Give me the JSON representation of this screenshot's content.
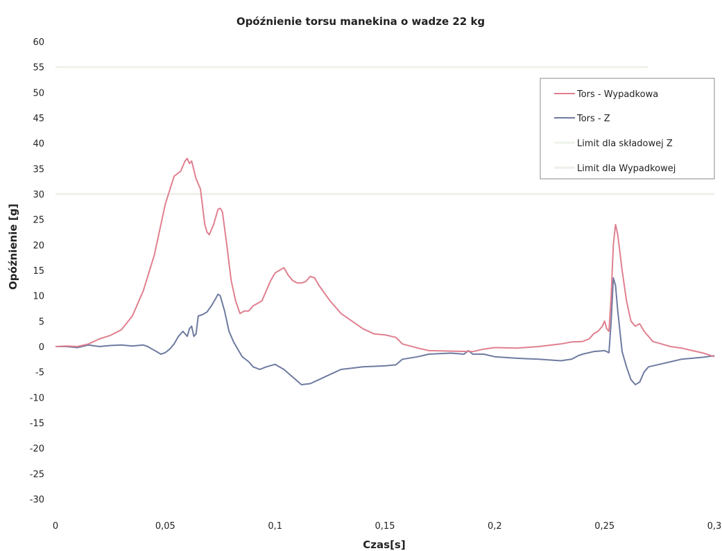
{
  "chart_data": {
    "type": "line",
    "title": "Opóźnienie torsu manekina o wadze 22 kg",
    "xlabel": "Czas[s]",
    "ylabel": "Opóźnienie [g]",
    "xlim": [
      0,
      0.3
    ],
    "ylim": [
      -30,
      60
    ],
    "x_ticks": [
      {
        "v": 0,
        "label": "0"
      },
      {
        "v": 0.05,
        "label": "0,05"
      },
      {
        "v": 0.1,
        "label": "0,1"
      },
      {
        "v": 0.15,
        "label": "0,15"
      },
      {
        "v": 0.2,
        "label": "0,2"
      },
      {
        "v": 0.25,
        "label": "0,25"
      },
      {
        "v": 0.3,
        "label": "0,3"
      }
    ],
    "y_ticks": [
      {
        "v": 60,
        "label": "60"
      },
      {
        "v": 55,
        "label": "55"
      },
      {
        "v": 50,
        "label": "50"
      },
      {
        "v": 45,
        "label": "45"
      },
      {
        "v": 40,
        "label": "40"
      },
      {
        "v": 35,
        "label": "35"
      },
      {
        "v": 30,
        "label": "30"
      },
      {
        "v": 25,
        "label": "25"
      },
      {
        "v": 20,
        "label": "20"
      },
      {
        "v": 15,
        "label": "15"
      },
      {
        "v": 10,
        "label": "10"
      },
      {
        "v": 5,
        "label": "5"
      },
      {
        "v": 0,
        "label": "0"
      },
      {
        "v": -5,
        "label": "-5"
      },
      {
        "v": -10,
        "label": "-10"
      },
      {
        "v": -15,
        "label": "-15"
      },
      {
        "v": -20,
        "label": "-20"
      },
      {
        "v": -25,
        "label": "-25"
      },
      {
        "v": -30,
        "label": "-30"
      }
    ],
    "grid": false,
    "legend_position": "top-right",
    "series": [
      {
        "name": "Tors - Wypadkowa",
        "color": "#e07f8f",
        "points": [
          [
            0,
            0
          ],
          [
            0.005,
            0.1
          ],
          [
            0.01,
            0
          ],
          [
            0.015,
            0.5
          ],
          [
            0.02,
            1.5
          ],
          [
            0.025,
            2.2
          ],
          [
            0.03,
            3.3
          ],
          [
            0.035,
            6
          ],
          [
            0.04,
            11
          ],
          [
            0.045,
            18
          ],
          [
            0.05,
            28
          ],
          [
            0.054,
            33.5
          ],
          [
            0.057,
            34.5
          ],
          [
            0.059,
            36.5
          ],
          [
            0.06,
            37
          ],
          [
            0.061,
            36
          ],
          [
            0.062,
            36.5
          ],
          [
            0.064,
            33
          ],
          [
            0.066,
            31
          ],
          [
            0.068,
            24
          ],
          [
            0.069,
            22.5
          ],
          [
            0.07,
            22
          ],
          [
            0.072,
            24
          ],
          [
            0.074,
            27
          ],
          [
            0.075,
            27.2
          ],
          [
            0.076,
            26.5
          ],
          [
            0.078,
            20
          ],
          [
            0.08,
            13
          ],
          [
            0.082,
            9
          ],
          [
            0.084,
            6.5
          ],
          [
            0.086,
            7
          ],
          [
            0.088,
            7
          ],
          [
            0.09,
            8
          ],
          [
            0.092,
            8.5
          ],
          [
            0.094,
            9
          ],
          [
            0.096,
            11
          ],
          [
            0.098,
            13
          ],
          [
            0.1,
            14.5
          ],
          [
            0.102,
            15
          ],
          [
            0.104,
            15.5
          ],
          [
            0.106,
            14
          ],
          [
            0.108,
            13
          ],
          [
            0.11,
            12.5
          ],
          [
            0.112,
            12.5
          ],
          [
            0.114,
            12.8
          ],
          [
            0.116,
            13.8
          ],
          [
            0.118,
            13.5
          ],
          [
            0.12,
            12
          ],
          [
            0.125,
            9
          ],
          [
            0.13,
            6.5
          ],
          [
            0.135,
            5
          ],
          [
            0.14,
            3.5
          ],
          [
            0.145,
            2.5
          ],
          [
            0.15,
            2.3
          ],
          [
            0.155,
            1.8
          ],
          [
            0.158,
            0.5
          ],
          [
            0.165,
            -0.3
          ],
          [
            0.17,
            -0.8
          ],
          [
            0.18,
            -0.9
          ],
          [
            0.19,
            -1
          ],
          [
            0.195,
            -0.5
          ],
          [
            0.2,
            -0.2
          ],
          [
            0.21,
            -0.3
          ],
          [
            0.22,
            0
          ],
          [
            0.23,
            0.5
          ],
          [
            0.235,
            0.9
          ],
          [
            0.24,
            1
          ],
          [
            0.243,
            1.5
          ],
          [
            0.245,
            2.5
          ],
          [
            0.247,
            3
          ],
          [
            0.249,
            4
          ],
          [
            0.25,
            5
          ],
          [
            0.251,
            3.5
          ],
          [
            0.252,
            3
          ],
          [
            0.253,
            10
          ],
          [
            0.254,
            20
          ],
          [
            0.255,
            24
          ],
          [
            0.256,
            22
          ],
          [
            0.258,
            15
          ],
          [
            0.26,
            9
          ],
          [
            0.262,
            5
          ],
          [
            0.264,
            4
          ],
          [
            0.266,
            4.5
          ],
          [
            0.268,
            3
          ],
          [
            0.272,
            1
          ],
          [
            0.276,
            0.5
          ],
          [
            0.28,
            0
          ],
          [
            0.285,
            -0.3
          ],
          [
            0.29,
            -0.8
          ],
          [
            0.295,
            -1.3
          ],
          [
            0.3,
            -2
          ]
        ]
      },
      {
        "name": "Tors - Z",
        "color": "#6e7aa0",
        "points": [
          [
            0,
            0
          ],
          [
            0.005,
            0
          ],
          [
            0.01,
            -0.2
          ],
          [
            0.015,
            0.3
          ],
          [
            0.02,
            0
          ],
          [
            0.025,
            0.2
          ],
          [
            0.03,
            0.3
          ],
          [
            0.035,
            0.1
          ],
          [
            0.04,
            0.3
          ],
          [
            0.042,
            0
          ],
          [
            0.044,
            -0.5
          ],
          [
            0.046,
            -1
          ],
          [
            0.048,
            -1.5
          ],
          [
            0.05,
            -1.2
          ],
          [
            0.052,
            -0.5
          ],
          [
            0.054,
            0.5
          ],
          [
            0.056,
            2
          ],
          [
            0.058,
            3
          ],
          [
            0.06,
            2
          ],
          [
            0.061,
            3.5
          ],
          [
            0.062,
            4
          ],
          [
            0.063,
            2
          ],
          [
            0.064,
            2.5
          ],
          [
            0.065,
            6
          ],
          [
            0.067,
            6.3
          ],
          [
            0.069,
            6.8
          ],
          [
            0.071,
            8
          ],
          [
            0.073,
            9.5
          ],
          [
            0.074,
            10.3
          ],
          [
            0.075,
            10
          ],
          [
            0.077,
            7
          ],
          [
            0.079,
            3
          ],
          [
            0.081,
            1
          ],
          [
            0.083,
            -0.5
          ],
          [
            0.085,
            -2
          ],
          [
            0.088,
            -3
          ],
          [
            0.09,
            -4
          ],
          [
            0.093,
            -4.5
          ],
          [
            0.096,
            -4
          ],
          [
            0.1,
            -3.5
          ],
          [
            0.104,
            -4.5
          ],
          [
            0.108,
            -6
          ],
          [
            0.112,
            -7.5
          ],
          [
            0.116,
            -7.3
          ],
          [
            0.12,
            -6.5
          ],
          [
            0.125,
            -5.5
          ],
          [
            0.13,
            -4.5
          ],
          [
            0.14,
            -4
          ],
          [
            0.15,
            -3.8
          ],
          [
            0.155,
            -3.6
          ],
          [
            0.158,
            -2.5
          ],
          [
            0.165,
            -2
          ],
          [
            0.17,
            -1.5
          ],
          [
            0.18,
            -1.3
          ],
          [
            0.186,
            -1.5
          ],
          [
            0.188,
            -0.8
          ],
          [
            0.19,
            -1.5
          ],
          [
            0.195,
            -1.5
          ],
          [
            0.2,
            -2
          ],
          [
            0.21,
            -2.3
          ],
          [
            0.22,
            -2.5
          ],
          [
            0.23,
            -2.8
          ],
          [
            0.235,
            -2.5
          ],
          [
            0.238,
            -1.8
          ],
          [
            0.24,
            -1.5
          ],
          [
            0.245,
            -1
          ],
          [
            0.25,
            -0.8
          ],
          [
            0.251,
            -1
          ],
          [
            0.252,
            -1.2
          ],
          [
            0.253,
            5
          ],
          [
            0.254,
            13.5
          ],
          [
            0.255,
            12
          ],
          [
            0.256,
            7
          ],
          [
            0.258,
            -1
          ],
          [
            0.26,
            -4
          ],
          [
            0.262,
            -6.5
          ],
          [
            0.264,
            -7.5
          ],
          [
            0.266,
            -7
          ],
          [
            0.268,
            -5
          ],
          [
            0.27,
            -4
          ],
          [
            0.275,
            -3.5
          ],
          [
            0.28,
            -3
          ],
          [
            0.285,
            -2.5
          ],
          [
            0.29,
            -2.3
          ],
          [
            0.295,
            -2.1
          ],
          [
            0.3,
            -1.8
          ]
        ]
      },
      {
        "name": "Limit dla składowej Z",
        "color": "#eef3ea",
        "points": [
          [
            0,
            55
          ],
          [
            0.27,
            55
          ]
        ]
      },
      {
        "name": "Limit dla Wypadkowej",
        "color": "#efefea",
        "points": [
          [
            0,
            30
          ],
          [
            0.3,
            30
          ]
        ]
      }
    ]
  }
}
